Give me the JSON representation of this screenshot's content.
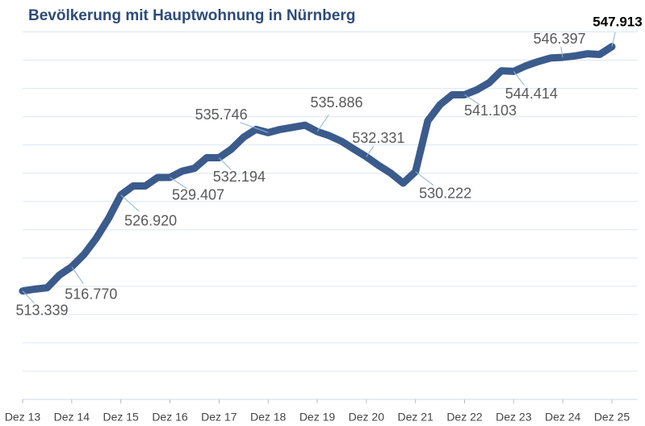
{
  "chart_data": {
    "type": "line",
    "title": "Bevölkerung mit Hauptwohnung in Nürnberg",
    "categories": [
      "Dez 13",
      null,
      null,
      null,
      "Dez 14",
      null,
      null,
      null,
      "Dez 15",
      null,
      null,
      null,
      "Dez 16",
      null,
      null,
      null,
      "Dez 17",
      null,
      null,
      null,
      "Dez 18",
      null,
      null,
      null,
      "Dez 19",
      null,
      null,
      null,
      "Dez 20",
      null,
      null,
      null,
      "Dez 21",
      null,
      null,
      null,
      "Dez 22",
      null,
      null,
      null,
      "Dez 23",
      null,
      null,
      null,
      "Dez 24",
      null,
      null,
      null,
      "Dez 25"
    ],
    "series": [
      {
        "color": "#3b5b8c",
        "values": [
          513339,
          513600,
          513800,
          515600,
          516770,
          518500,
          520800,
          523600,
          526920,
          528200,
          528200,
          529400,
          529407,
          530300,
          530700,
          532200,
          532194,
          533400,
          535100,
          536200,
          535746,
          536200,
          536500,
          536800,
          535886,
          535300,
          534500,
          533400,
          532331,
          531100,
          530000,
          528600,
          530222,
          537400,
          539700,
          541100,
          541103,
          541800,
          542800,
          544500,
          544414,
          545200,
          545800,
          546300,
          546397,
          546600,
          546900,
          546800,
          547913
        ],
        "value_labels": [
          "513.339",
          null,
          null,
          null,
          "516.770",
          null,
          null,
          null,
          "526.920",
          null,
          null,
          null,
          "529.407",
          null,
          null,
          null,
          "532.194",
          null,
          null,
          null,
          "535.746",
          null,
          null,
          null,
          "535.886",
          null,
          null,
          null,
          "532.331",
          null,
          null,
          null,
          "530.222",
          null,
          null,
          null,
          "541.103",
          null,
          null,
          null,
          "544.414",
          null,
          null,
          null,
          "546.397",
          null,
          null,
          null,
          "547.913"
        ]
      }
    ],
    "ylim": [
      498000,
      552000
    ],
    "yticks": [
      498000,
      502000,
      506000,
      510000,
      514000,
      518000,
      522000,
      526000,
      530000,
      534000,
      538000,
      542000,
      546000,
      550000
    ],
    "grid": true
  }
}
